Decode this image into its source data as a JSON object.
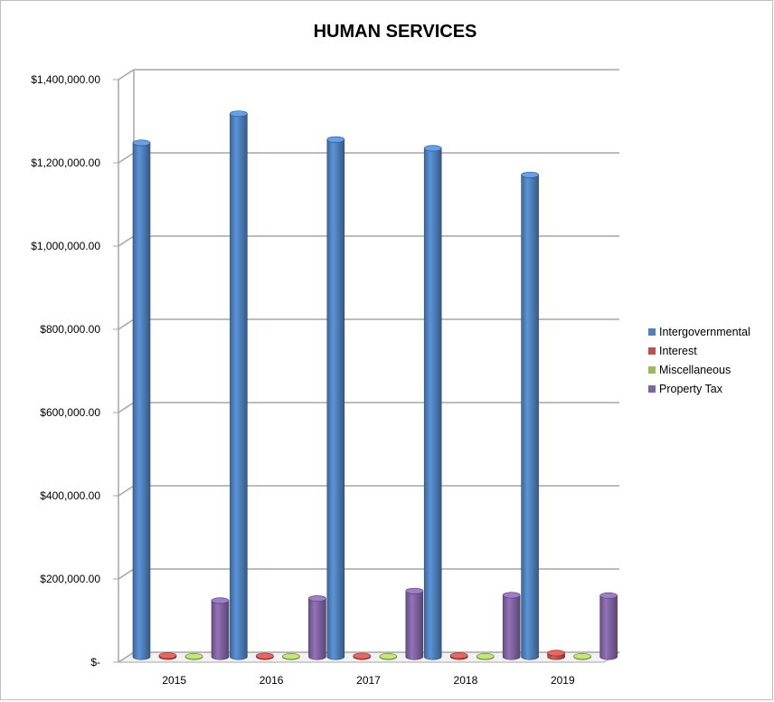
{
  "chart_data": {
    "type": "bar",
    "title": "HUMAN SERVICES",
    "xlabel": "",
    "ylabel": "",
    "categories": [
      "2015",
      "2016",
      "2017",
      "2018",
      "2019"
    ],
    "series": [
      {
        "name": "Intergovernmental",
        "color": "#4f81bd",
        "values": [
          1235000,
          1305000,
          1243000,
          1222000,
          1158000
        ]
      },
      {
        "name": "Interest",
        "color": "#c0504d",
        "values": [
          3000,
          2000,
          2000,
          3000,
          9000
        ]
      },
      {
        "name": "Miscellaneous",
        "color": "#9bbb59",
        "values": [
          1000,
          1000,
          1000,
          1000,
          1000
        ]
      },
      {
        "name": "Property Tax",
        "color": "#8064a2",
        "values": [
          135000,
          140000,
          158000,
          148000,
          147000
        ]
      }
    ],
    "ylim": [
      0,
      1400000
    ],
    "yticks": [
      0,
      200000,
      400000,
      600000,
      800000,
      1000000,
      1200000,
      1400000
    ],
    "ytick_labels": [
      "$-",
      "$200,000.00",
      "$400,000.00",
      "$600,000.00",
      "$800,000.00",
      "$1,000,000.00",
      "$1,200,000.00",
      "$1,400,000.00"
    ],
    "grid": true,
    "legend_position": "right",
    "style": "3d-cylinder"
  }
}
